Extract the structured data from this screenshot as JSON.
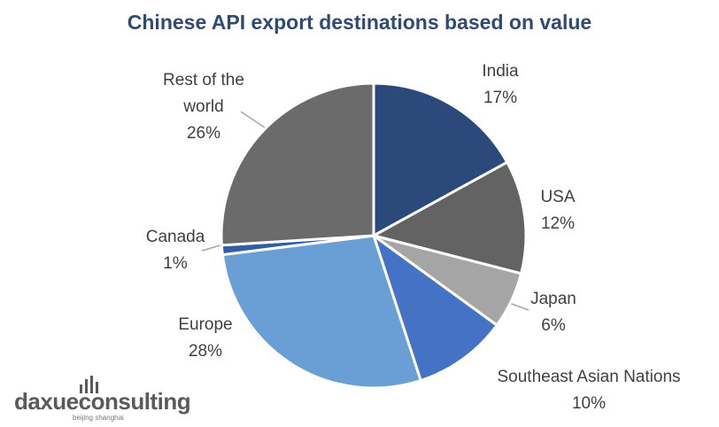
{
  "chart_data": {
    "type": "pie",
    "title": "Chinese API export destinations based on value",
    "categories": [
      "India",
      "USA",
      "Japan",
      "Southeast Asian Nations",
      "Europe",
      "Canada",
      "Rest of the world"
    ],
    "values": [
      17,
      12,
      6,
      10,
      28,
      1,
      26
    ],
    "value_labels": [
      "17%",
      "12%",
      "6%",
      "10%",
      "28%",
      "1%",
      "26%"
    ],
    "colors": [
      "#2b4a7b",
      "#636363",
      "#a5a5a5",
      "#4472c4",
      "#6a9fd5",
      "#2f5ea3",
      "#6b6b6b"
    ]
  },
  "logo": {
    "name": "daxueconsulting",
    "tagline": "beijing shanghai"
  }
}
